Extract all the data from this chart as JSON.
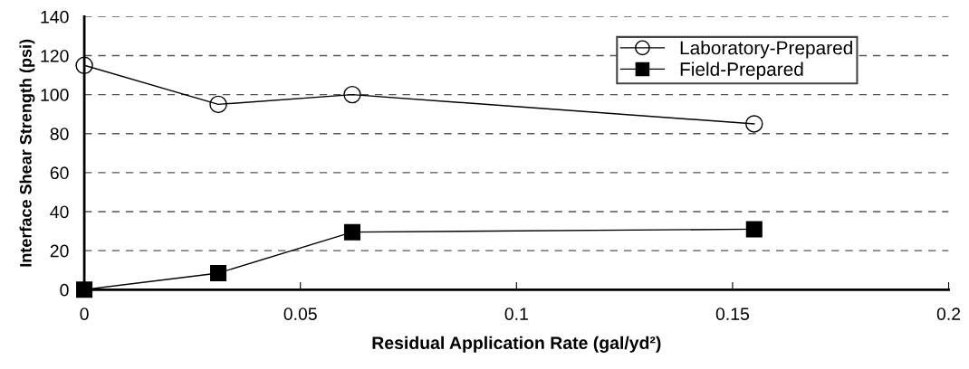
{
  "chart_data": {
    "type": "line",
    "xlabel": "Residual Application Rate (gal/yd²)",
    "ylabel": "Interface Shear Strength (psi)",
    "x": [
      0,
      0.031,
      0.062,
      0.155
    ],
    "series": [
      {
        "name": "Laboratory-Prepared",
        "color": "#000000",
        "values": [
          115,
          95,
          100,
          85
        ],
        "marker": "circle"
      },
      {
        "name": "Field-Prepared",
        "color": "#000000",
        "values": [
          0,
          8.5,
          29.5,
          31
        ],
        "marker": "square"
      }
    ],
    "xlim": [
      0,
      0.2
    ],
    "xticks": [
      0,
      0.05,
      0.1,
      0.15,
      0.2
    ],
    "ylim": [
      0,
      140
    ],
    "yticks": [
      0,
      20,
      40,
      60,
      80,
      100,
      120,
      140
    ],
    "grid": "y",
    "legend": "top right",
    "line_style": "solid"
  }
}
